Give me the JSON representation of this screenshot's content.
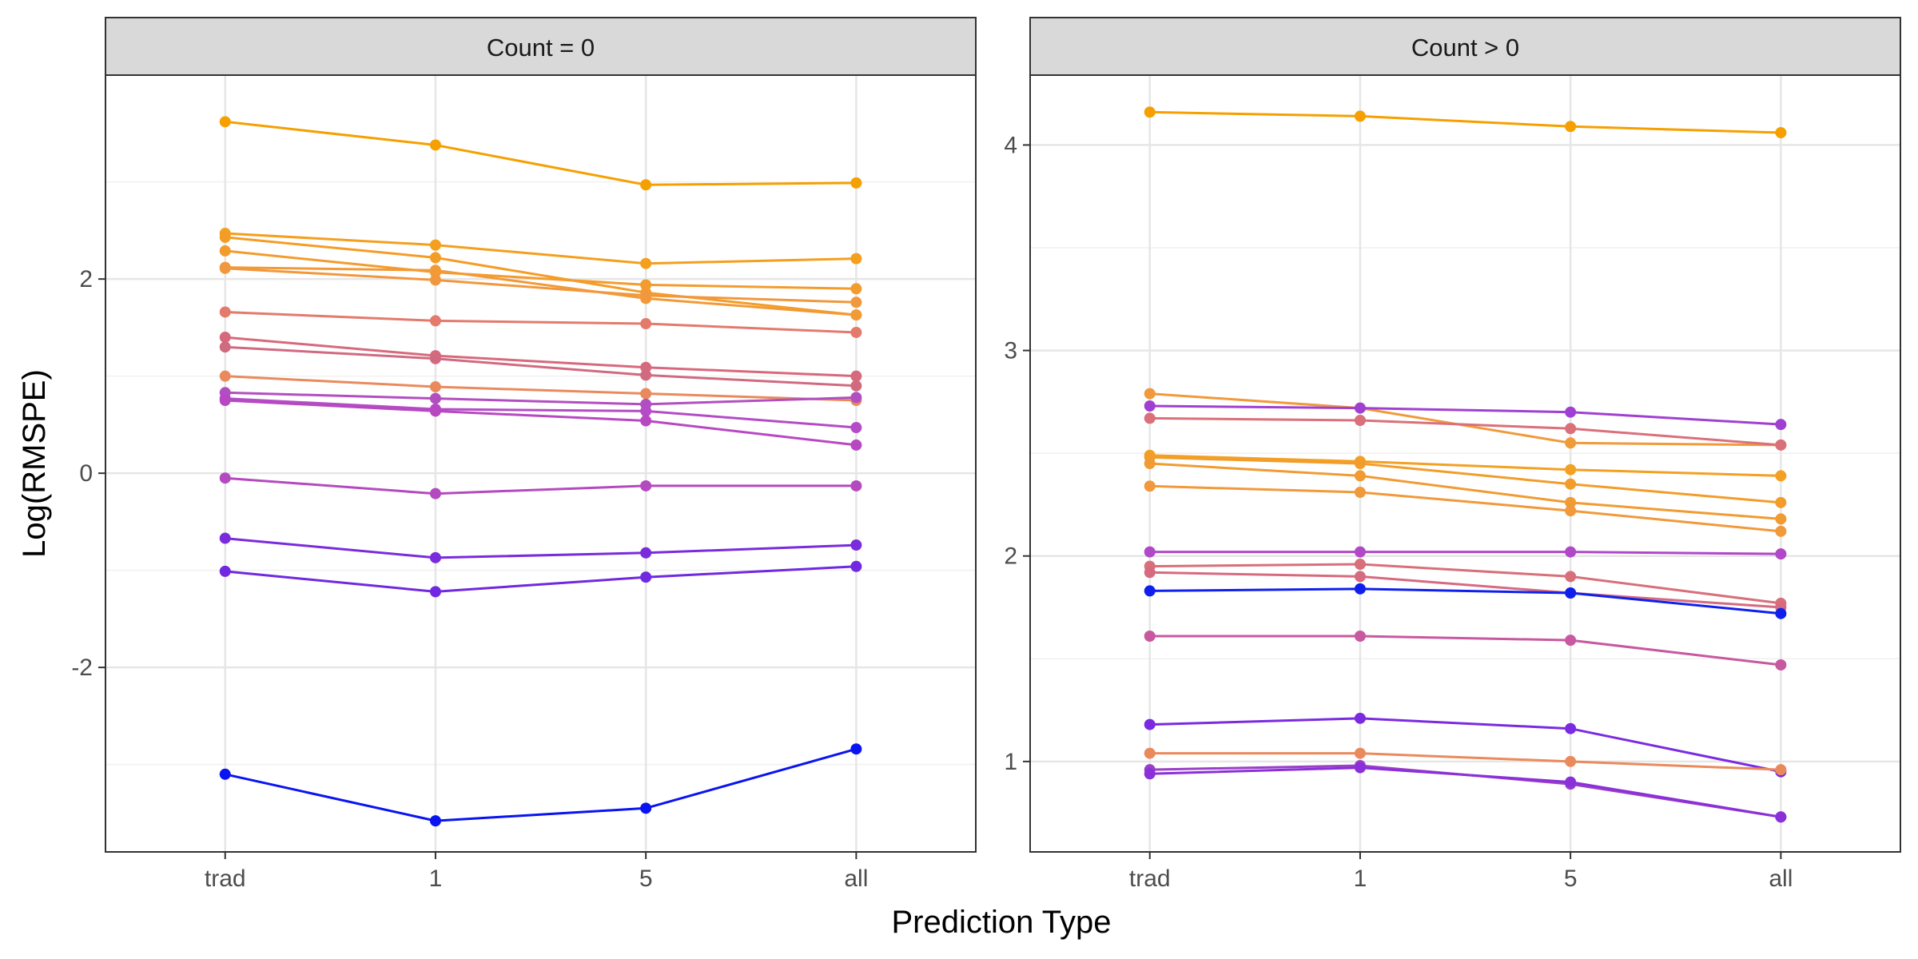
{
  "chart_data": {
    "type": "line",
    "xlabel": "Prediction Type",
    "ylabel": "Log(RMSPE)",
    "categories": [
      "trad",
      "1",
      "5",
      "all"
    ],
    "facets": [
      {
        "strip_label": "Count = 0",
        "ylim": [
          -3.9,
          4.1
        ],
        "y_ticks": [
          -2,
          0,
          2
        ],
        "y_tick_labels": [
          "-2",
          "0",
          "2"
        ],
        "series": [
          {
            "color": "#f5a000",
            "values": [
              3.62,
              3.38,
              2.97,
              2.99
            ]
          },
          {
            "color": "#f49f1e",
            "values": [
              2.47,
              2.35,
              2.16,
              2.21
            ]
          },
          {
            "color": "#f49d26",
            "values": [
              2.43,
              2.22,
              1.86,
              1.63
            ]
          },
          {
            "color": "#f39c2e",
            "values": [
              2.29,
              2.07,
              1.94,
              1.9
            ]
          },
          {
            "color": "#f29a36",
            "values": [
              2.12,
              2.09,
              1.8,
              1.63
            ]
          },
          {
            "color": "#f1983e",
            "values": [
              2.11,
              1.99,
              1.83,
              1.76
            ]
          },
          {
            "color": "#e37a6c",
            "values": [
              1.66,
              1.57,
              1.54,
              1.45
            ]
          },
          {
            "color": "#d7697c",
            "values": [
              1.4,
              1.21,
              1.09,
              1.0
            ]
          },
          {
            "color": "#d06a80",
            "values": [
              1.3,
              1.18,
              1.01,
              0.9
            ]
          },
          {
            "color": "#ea8a5c",
            "values": [
              1.0,
              0.89,
              0.82,
              0.75
            ]
          },
          {
            "color": "#b24fc0",
            "values": [
              0.83,
              0.77,
              0.71,
              0.78
            ]
          },
          {
            "color": "#b34cc6",
            "values": [
              0.77,
              0.66,
              0.64,
              0.47
            ]
          },
          {
            "color": "#b848c2",
            "values": [
              0.75,
              0.64,
              0.54,
              0.29
            ]
          },
          {
            "color": "#b44abf",
            "values": [
              -0.05,
              -0.21,
              -0.13,
              -0.13
            ]
          },
          {
            "color": "#7a2bdc",
            "values": [
              -0.67,
              -0.87,
              -0.82,
              -0.74
            ]
          },
          {
            "color": "#7028e0",
            "values": [
              -1.01,
              -1.22,
              -1.07,
              -0.96
            ]
          },
          {
            "color": "#0a14f0",
            "values": [
              -3.1,
              -3.58,
              -3.45,
              -2.84
            ]
          }
        ]
      },
      {
        "strip_label": "Count > 0",
        "ylim": [
          0.56,
          4.34
        ],
        "y_ticks": [
          1,
          2,
          3,
          4
        ],
        "y_tick_labels": [
          "1",
          "2",
          "3",
          "4"
        ],
        "series": [
          {
            "color": "#f5a000",
            "values": [
              4.16,
              4.14,
              4.09,
              4.06
            ]
          },
          {
            "color": "#f09a3a",
            "values": [
              2.79,
              2.72,
              2.55,
              2.54
            ]
          },
          {
            "color": "#a040d2",
            "values": [
              2.73,
              2.72,
              2.7,
              2.64
            ]
          },
          {
            "color": "#d9707a",
            "values": [
              2.67,
              2.66,
              2.62,
              2.54
            ]
          },
          {
            "color": "#f3a023",
            "values": [
              2.49,
              2.46,
              2.42,
              2.39
            ]
          },
          {
            "color": "#f29d2b",
            "values": [
              2.48,
              2.45,
              2.35,
              2.26
            ]
          },
          {
            "color": "#f19b33",
            "values": [
              2.45,
              2.39,
              2.26,
              2.18
            ]
          },
          {
            "color": "#f1993b",
            "values": [
              2.34,
              2.31,
              2.22,
              2.12
            ]
          },
          {
            "color": "#b048c8",
            "values": [
              2.02,
              2.02,
              2.02,
              2.01
            ]
          },
          {
            "color": "#d7707a",
            "values": [
              1.95,
              1.96,
              1.9,
              1.77
            ]
          },
          {
            "color": "#d66a80",
            "values": [
              1.92,
              1.9,
              1.82,
              1.75
            ]
          },
          {
            "color": "#1020ec",
            "values": [
              1.83,
              1.84,
              1.82,
              1.72
            ]
          },
          {
            "color": "#c858a0",
            "values": [
              1.61,
              1.61,
              1.59,
              1.47
            ]
          },
          {
            "color": "#7a2be0",
            "values": [
              1.18,
              1.21,
              1.16,
              0.95
            ]
          },
          {
            "color": "#ea8a5c",
            "values": [
              1.04,
              1.04,
              1.0,
              0.96
            ]
          },
          {
            "color": "#9a3fc8",
            "values": [
              0.96,
              0.98,
              0.89,
              0.73
            ]
          },
          {
            "color": "#8a30d8",
            "values": [
              0.94,
              0.97,
              0.9,
              0.73
            ]
          }
        ]
      }
    ],
    "grid": true,
    "legend": "none"
  }
}
